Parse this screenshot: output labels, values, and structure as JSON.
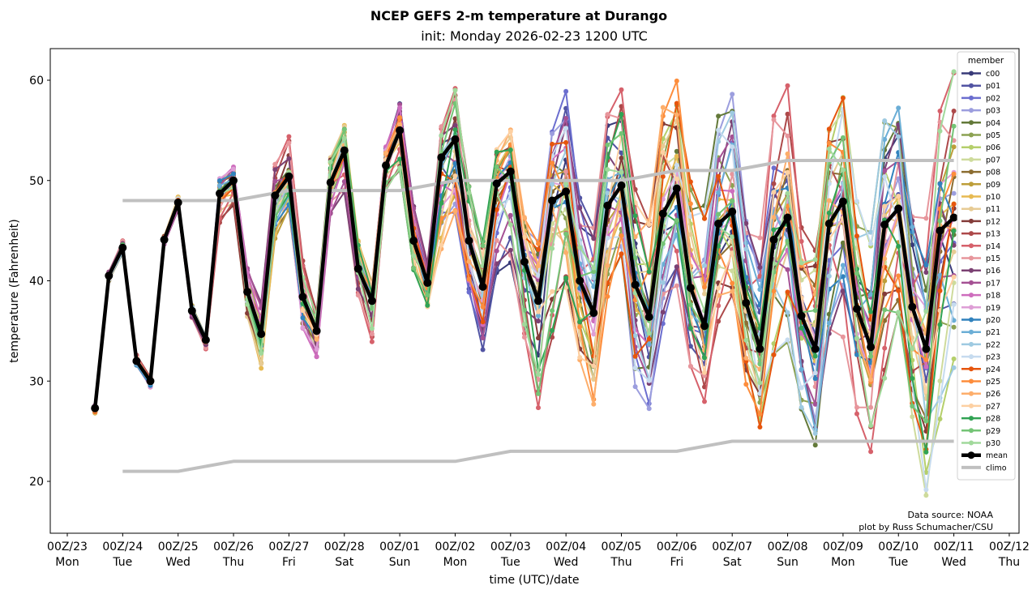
{
  "chart_data": {
    "type": "line",
    "title": "NCEP GEFS 2-m temperature at Durango",
    "subtitle": "init: Monday 2026-02-23 1200 UTC",
    "xlabel": "time (UTC)/date",
    "ylabel": "temperature (Fahrenheit)",
    "ylim": [
      15,
      63.2
    ],
    "yticks": [
      20,
      30,
      40,
      50,
      60
    ],
    "xlim_hours_from_00Z23": [
      -12,
      432
    ],
    "xticks": [
      {
        "hour": 0,
        "label": "00Z/23",
        "day": "Mon"
      },
      {
        "hour": 24,
        "label": "00Z/24",
        "day": "Tue"
      },
      {
        "hour": 48,
        "label": "00Z/25",
        "day": "Wed"
      },
      {
        "hour": 72,
        "label": "00Z/26",
        "day": "Thu"
      },
      {
        "hour": 96,
        "label": "00Z/27",
        "day": "Fri"
      },
      {
        "hour": 120,
        "label": "00Z/28",
        "day": "Sat"
      },
      {
        "hour": 144,
        "label": "00Z/01",
        "day": "Sun"
      },
      {
        "hour": 168,
        "label": "00Z/02",
        "day": "Mon"
      },
      {
        "hour": 192,
        "label": "00Z/03",
        "day": "Tue"
      },
      {
        "hour": 216,
        "label": "00Z/04",
        "day": "Wed"
      },
      {
        "hour": 240,
        "label": "00Z/05",
        "day": "Thu"
      },
      {
        "hour": 264,
        "label": "00Z/06",
        "day": "Fri"
      },
      {
        "hour": 288,
        "label": "00Z/07",
        "day": "Sat"
      },
      {
        "hour": 312,
        "label": "00Z/08",
        "day": "Sun"
      },
      {
        "hour": 336,
        "label": "00Z/09",
        "day": "Mon"
      },
      {
        "hour": 360,
        "label": "00Z/10",
        "day": "Tue"
      },
      {
        "hour": 384,
        "label": "00Z/11",
        "day": "Wed"
      },
      {
        "hour": 408,
        "label": "00Z/12",
        "day": "Thu"
      }
    ],
    "time_start_hour": 12,
    "time_step_hours": 6,
    "mean": [
      27.3,
      40.5,
      43.3,
      32.0,
      30.0,
      44.1,
      47.8,
      37.0,
      34.1,
      48.7,
      50.0,
      38.9,
      34.7,
      48.5,
      50.4,
      38.4,
      35.0,
      49.8,
      53.0,
      41.2,
      38.0,
      51.5,
      55.0,
      44.0,
      39.8,
      52.3,
      54.1,
      44.0,
      39.4,
      49.7,
      50.9,
      41.9,
      38.0,
      48.0,
      48.9,
      40.0,
      36.8,
      47.5,
      49.5,
      39.6,
      36.4,
      46.7,
      49.2,
      39.3,
      35.5,
      45.7,
      46.9,
      37.8,
      33.2,
      44.1,
      46.3,
      36.5,
      33.2,
      45.7,
      47.9,
      37.2,
      33.4,
      45.6,
      47.2,
      37.4,
      33.2,
      45.0,
      46.3
    ],
    "ensemble_max": [
      27.6,
      40.9,
      44.0,
      32.6,
      30.4,
      44.5,
      48.4,
      37.6,
      34.5,
      50.6,
      51.6,
      41.5,
      38.0,
      51.7,
      54.4,
      42.0,
      37.0,
      52.5,
      56.0,
      45.0,
      40.8,
      54.2,
      58.3,
      48.0,
      42.0,
      55.5,
      59.2,
      49.5,
      44.0,
      53.2,
      55.4,
      47.0,
      45.0,
      55.6,
      59.0,
      48.5,
      46.0,
      57.2,
      59.1,
      49.5,
      47.5,
      58.0,
      60.0,
      50.0,
      48.0,
      56.6,
      59.5,
      47.5,
      45.0,
      57.4,
      59.6,
      46.0,
      45.0,
      57.0,
      59.3,
      48.0,
      45.5,
      56.7,
      58.8,
      49.0,
      47.0,
      57.7,
      61.0
    ],
    "ensemble_min": [
      26.8,
      40.0,
      42.7,
      31.5,
      29.3,
      43.6,
      47.0,
      36.3,
      33.2,
      45.8,
      47.5,
      36.3,
      30.9,
      43.3,
      45.8,
      34.0,
      31.7,
      46.2,
      48.5,
      38.5,
      33.9,
      49.0,
      50.8,
      40.8,
      37.0,
      40.6,
      43.7,
      37.7,
      32.7,
      40.4,
      41.7,
      34.0,
      27.3,
      34.0,
      38.9,
      31.7,
      27.3,
      38.0,
      42.0,
      29.3,
      26.8,
      35.0,
      38.8,
      30.8,
      27.9,
      35.4,
      37.0,
      29.0,
      25.1,
      31.8,
      33.8,
      26.5,
      22.3,
      31.7,
      33.6,
      26.0,
      22.8,
      29.6,
      34.4,
      25.0,
      17.7,
      25.8,
      31.3
    ],
    "climo_max": [
      {
        "hour": 24,
        "value": 48
      },
      {
        "hour": 48,
        "value": 48
      },
      {
        "hour": 72,
        "value": 48
      },
      {
        "hour": 96,
        "value": 49
      },
      {
        "hour": 120,
        "value": 49
      },
      {
        "hour": 144,
        "value": 49
      },
      {
        "hour": 168,
        "value": 50
      },
      {
        "hour": 192,
        "value": 50
      },
      {
        "hour": 216,
        "value": 50
      },
      {
        "hour": 240,
        "value": 50
      },
      {
        "hour": 264,
        "value": 51
      },
      {
        "hour": 288,
        "value": 51
      },
      {
        "hour": 312,
        "value": 52
      },
      {
        "hour": 336,
        "value": 52
      },
      {
        "hour": 360,
        "value": 52
      },
      {
        "hour": 384,
        "value": 52
      }
    ],
    "climo_min": [
      {
        "hour": 24,
        "value": 21
      },
      {
        "hour": 48,
        "value": 21
      },
      {
        "hour": 72,
        "value": 22
      },
      {
        "hour": 96,
        "value": 22
      },
      {
        "hour": 120,
        "value": 22
      },
      {
        "hour": 144,
        "value": 22
      },
      {
        "hour": 168,
        "value": 22
      },
      {
        "hour": 192,
        "value": 23
      },
      {
        "hour": 216,
        "value": 23
      },
      {
        "hour": 240,
        "value": 23
      },
      {
        "hour": 264,
        "value": 23
      },
      {
        "hour": 288,
        "value": 24
      },
      {
        "hour": 312,
        "value": 24
      },
      {
        "hour": 336,
        "value": 24
      },
      {
        "hour": 360,
        "value": 24
      },
      {
        "hour": 384,
        "value": 24
      }
    ],
    "members": [
      {
        "name": "c00",
        "color": "#393b79",
        "phase": 0.0
      },
      {
        "name": "p01",
        "color": "#5254a3",
        "phase": 0.21
      },
      {
        "name": "p02",
        "color": "#6b6ecf",
        "phase": 0.43
      },
      {
        "name": "p03",
        "color": "#9c9ede",
        "phase": 0.64
      },
      {
        "name": "p04",
        "color": "#637939",
        "phase": 0.86
      },
      {
        "name": "p05",
        "color": "#8ca252",
        "phase": 1.07
      },
      {
        "name": "p06",
        "color": "#b5cf6b",
        "phase": 1.29
      },
      {
        "name": "p07",
        "color": "#cedb9c",
        "phase": 1.5
      },
      {
        "name": "p08",
        "color": "#8c6d31",
        "phase": 1.71
      },
      {
        "name": "p09",
        "color": "#bd9e39",
        "phase": 1.93
      },
      {
        "name": "p10",
        "color": "#e7ba52",
        "phase": 2.14
      },
      {
        "name": "p11",
        "color": "#e7cb94",
        "phase": 2.36
      },
      {
        "name": "p12",
        "color": "#843c39",
        "phase": 2.57
      },
      {
        "name": "p13",
        "color": "#ad494a",
        "phase": 2.79
      },
      {
        "name": "p14",
        "color": "#d6616b",
        "phase": 3.0
      },
      {
        "name": "p15",
        "color": "#e7969c",
        "phase": 3.21
      },
      {
        "name": "p16",
        "color": "#7b4173",
        "phase": 3.43
      },
      {
        "name": "p17",
        "color": "#a55194",
        "phase": 3.64
      },
      {
        "name": "p18",
        "color": "#ce6dbd",
        "phase": 3.86
      },
      {
        "name": "p19",
        "color": "#de9ed6",
        "phase": 4.07
      },
      {
        "name": "p20",
        "color": "#3182bd",
        "phase": 4.29
      },
      {
        "name": "p21",
        "color": "#6baed6",
        "phase": 4.5
      },
      {
        "name": "p22",
        "color": "#9ecae1",
        "phase": 4.71
      },
      {
        "name": "p23",
        "color": "#c6dbef",
        "phase": 4.93
      },
      {
        "name": "p24",
        "color": "#e6550d",
        "phase": 5.14
      },
      {
        "name": "p25",
        "color": "#fd8d3c",
        "phase": 5.36
      },
      {
        "name": "p26",
        "color": "#fdae6b",
        "phase": 5.57
      },
      {
        "name": "p27",
        "color": "#fdd0a2",
        "phase": 5.79
      },
      {
        "name": "p28",
        "color": "#31a354",
        "phase": 6.0
      },
      {
        "name": "p29",
        "color": "#74c476",
        "phase": 6.21
      },
      {
        "name": "p30",
        "color": "#a1d99b",
        "phase": 6.43
      }
    ],
    "mean_style": {
      "name": "mean",
      "color": "#000000"
    },
    "climo_style": {
      "name": "climo",
      "color": "#c0c0c0"
    },
    "legend": {
      "title": "member",
      "placement": "right"
    },
    "grid": false
  },
  "credits": {
    "line1": "Data source: NOAA",
    "line2": "plot by Russ Schumacher/CSU"
  }
}
